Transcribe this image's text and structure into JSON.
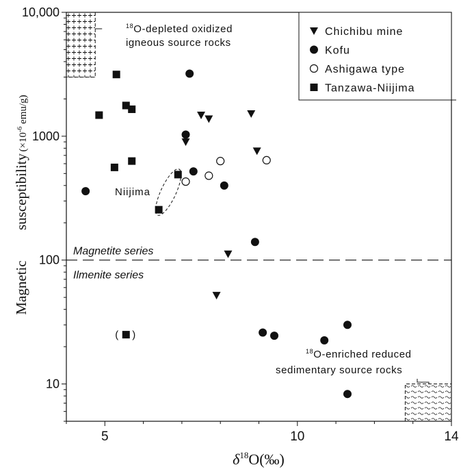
{
  "chart_data": {
    "type": "scatter",
    "x_axis": {
      "label_symbol": "δ",
      "label_sup": "18",
      "label_main": "O",
      "label_unit": "(‰)",
      "range": [
        4,
        14
      ],
      "ticks": [
        5,
        10,
        14
      ],
      "tick_labels": [
        "5",
        "10",
        "14"
      ],
      "minor_step": 1
    },
    "y_axis": {
      "scale": "log",
      "label_words": [
        "Magnetic",
        "susceptibility"
      ],
      "label_unit_pre": "(×10",
      "label_unit_sup": "-6",
      "label_unit_post": " emu/g)",
      "range": [
        5,
        10000
      ],
      "ticks": [
        10,
        100,
        1000,
        10000
      ],
      "tick_labels": [
        "10",
        "100",
        "1000",
        "10,000"
      ]
    },
    "legend": {
      "position": "top-right",
      "entries": [
        {
          "label": "Chichibu mine",
          "marker": "triangle-down"
        },
        {
          "label": "Kofu",
          "marker": "circle"
        },
        {
          "label": "Ashigawa type",
          "marker": "circle-open"
        },
        {
          "label": "Tanzawa-Niijima",
          "marker": "square"
        }
      ]
    },
    "series": [
      {
        "name": "Chichibu mine",
        "marker": "triangle-down",
        "points": [
          [
            7.1,
            900
          ],
          [
            7.5,
            1480
          ],
          [
            7.7,
            1380
          ],
          [
            8.8,
            1520
          ],
          [
            8.95,
            760
          ],
          [
            8.2,
            112
          ],
          [
            7.9,
            52
          ]
        ]
      },
      {
        "name": "Kofu",
        "marker": "circle",
        "points": [
          [
            4.5,
            360
          ],
          [
            7.2,
            3200
          ],
          [
            7.1,
            1030
          ],
          [
            7.3,
            520
          ],
          [
            8.1,
            400
          ],
          [
            8.9,
            140
          ],
          [
            9.1,
            26
          ],
          [
            9.4,
            24.5
          ],
          [
            10.7,
            22.5
          ],
          [
            11.3,
            30
          ],
          [
            11.3,
            8.3
          ]
        ]
      },
      {
        "name": "Ashigawa type",
        "marker": "circle-open",
        "points": [
          [
            7.1,
            430
          ],
          [
            7.7,
            480
          ],
          [
            8.0,
            630
          ],
          [
            9.2,
            640
          ]
        ]
      },
      {
        "name": "Tanzawa-Niijima",
        "marker": "square",
        "points": [
          [
            5.3,
            3150
          ],
          [
            5.55,
            1770
          ],
          [
            5.7,
            1650
          ],
          [
            4.85,
            1480
          ],
          [
            5.7,
            630
          ],
          [
            5.25,
            560
          ],
          [
            6.9,
            490
          ],
          [
            6.4,
            255
          ],
          [
            5.55,
            25
          ]
        ]
      }
    ],
    "annotations": {
      "magnetite_series": "Magnetite series",
      "ilmenite_series": "Ilmenite series",
      "boundary_value": 100,
      "niijima": "Niijima",
      "bracket_left": "(",
      "bracket_right": ")",
      "depleted_sup": "18",
      "depleted_line1": "O-depleted oxidized",
      "depleted_line2": "igneous source rocks",
      "enriched_sup": "18",
      "enriched_line1": "O-enriched reduced",
      "enriched_line2": "sedimentary source rocks"
    }
  }
}
